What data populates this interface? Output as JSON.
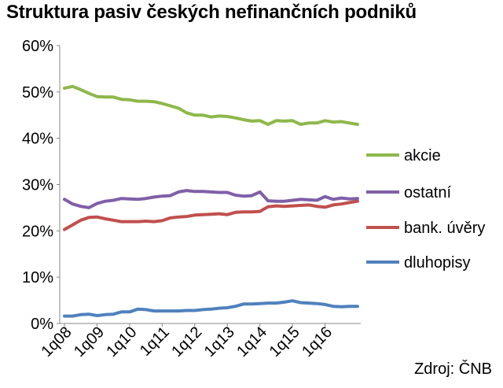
{
  "title": "Struktura pasiv českých nefinančních podniků",
  "source": "Zdroj: ČNB",
  "chart_data": {
    "type": "line",
    "title": "Struktura pasiv českých nefinančních podniků",
    "xlabel": "",
    "ylabel": "",
    "ylim": [
      0,
      60
    ],
    "yticks": [
      "0%",
      "10%",
      "20%",
      "30%",
      "40%",
      "50%",
      "60%"
    ],
    "x_tick_labels": [
      "1q08",
      "1q09",
      "1q10",
      "1q11",
      "1q12",
      "1q13",
      "1q14",
      "1q15",
      "1q16"
    ],
    "grid": false,
    "legend_position": "right",
    "series": [
      {
        "name": "akcie",
        "color": "#8db84a",
        "values": [
          50.8,
          51.2,
          50.5,
          49.7,
          49.0,
          48.9,
          48.9,
          48.4,
          48.3,
          48.0,
          48.0,
          47.9,
          47.5,
          47.0,
          46.5,
          45.5,
          45.0,
          45.0,
          44.6,
          44.8,
          44.7,
          44.4,
          44.0,
          43.7,
          43.8,
          43.0,
          43.8,
          43.7,
          43.8,
          43.0,
          43.3,
          43.3,
          43.8,
          43.5,
          43.6,
          43.3,
          43.0
        ]
      },
      {
        "name": "ostatní",
        "color": "#7f5fa8",
        "values": [
          26.8,
          25.8,
          25.3,
          25.0,
          25.9,
          26.4,
          26.6,
          27.0,
          26.9,
          26.8,
          27.0,
          27.3,
          27.5,
          27.6,
          28.4,
          28.7,
          28.5,
          28.5,
          28.4,
          28.3,
          28.3,
          27.7,
          27.5,
          27.6,
          28.4,
          26.5,
          26.4,
          26.4,
          26.6,
          26.8,
          26.7,
          26.6,
          27.4,
          26.8,
          27.1,
          26.9,
          27.0
        ]
      },
      {
        "name": "bank. úvěry",
        "color": "#c0504d",
        "values": [
          20.3,
          21.3,
          22.3,
          22.9,
          23.0,
          22.6,
          22.3,
          22.0,
          22.0,
          22.0,
          22.1,
          22.0,
          22.2,
          22.8,
          23.0,
          23.1,
          23.4,
          23.5,
          23.6,
          23.7,
          23.5,
          24.0,
          24.1,
          24.1,
          24.2,
          25.2,
          25.4,
          25.3,
          25.4,
          25.5,
          25.6,
          25.3,
          25.1,
          25.6,
          25.8,
          26.1,
          26.4
        ]
      },
      {
        "name": "dluhopisy",
        "color": "#4f81bd",
        "values": [
          1.6,
          1.6,
          1.9,
          2.0,
          1.7,
          1.9,
          2.0,
          2.5,
          2.5,
          3.1,
          3.0,
          2.7,
          2.7,
          2.7,
          2.7,
          2.8,
          2.8,
          3.0,
          3.1,
          3.3,
          3.4,
          3.7,
          4.2,
          4.2,
          4.3,
          4.4,
          4.4,
          4.6,
          4.9,
          4.5,
          4.4,
          4.3,
          4.1,
          3.7,
          3.6,
          3.7,
          3.7
        ]
      }
    ]
  }
}
